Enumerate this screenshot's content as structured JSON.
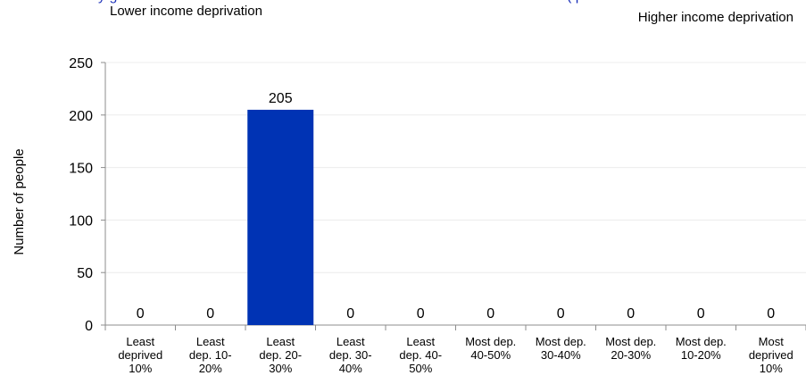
{
  "header": {
    "title_left_fragment": "y      g",
    "title_right_fragment": "(          p",
    "left_hint": "Lower income deprivation",
    "right_hint": "Higher income deprivation"
  },
  "colors": {
    "bar": "#0033b4",
    "axis": "#8c8c8c",
    "grid": "#ececec",
    "title": "#1a2fb8"
  },
  "chart_data": {
    "type": "bar",
    "ylabel": "Number of people",
    "ylim": [
      0,
      250
    ],
    "yticks": [
      0,
      50,
      100,
      150,
      200,
      250
    ],
    "grid": true,
    "categories": [
      [
        "Least",
        "deprived",
        "10%"
      ],
      [
        "Least",
        "dep. 10-",
        "20%"
      ],
      [
        "Least",
        "dep. 20-",
        "30%"
      ],
      [
        "Least",
        "dep. 30-",
        "40%"
      ],
      [
        "Least",
        "dep. 40-",
        "50%"
      ],
      [
        "Most dep.",
        "40-50%"
      ],
      [
        "Most dep.",
        "30-40%"
      ],
      [
        "Most dep.",
        "20-30%"
      ],
      [
        "Most dep.",
        "10-20%"
      ],
      [
        "Most",
        "deprived",
        "10%"
      ]
    ],
    "values": [
      0,
      0,
      205,
      0,
      0,
      0,
      0,
      0,
      0,
      0
    ]
  }
}
